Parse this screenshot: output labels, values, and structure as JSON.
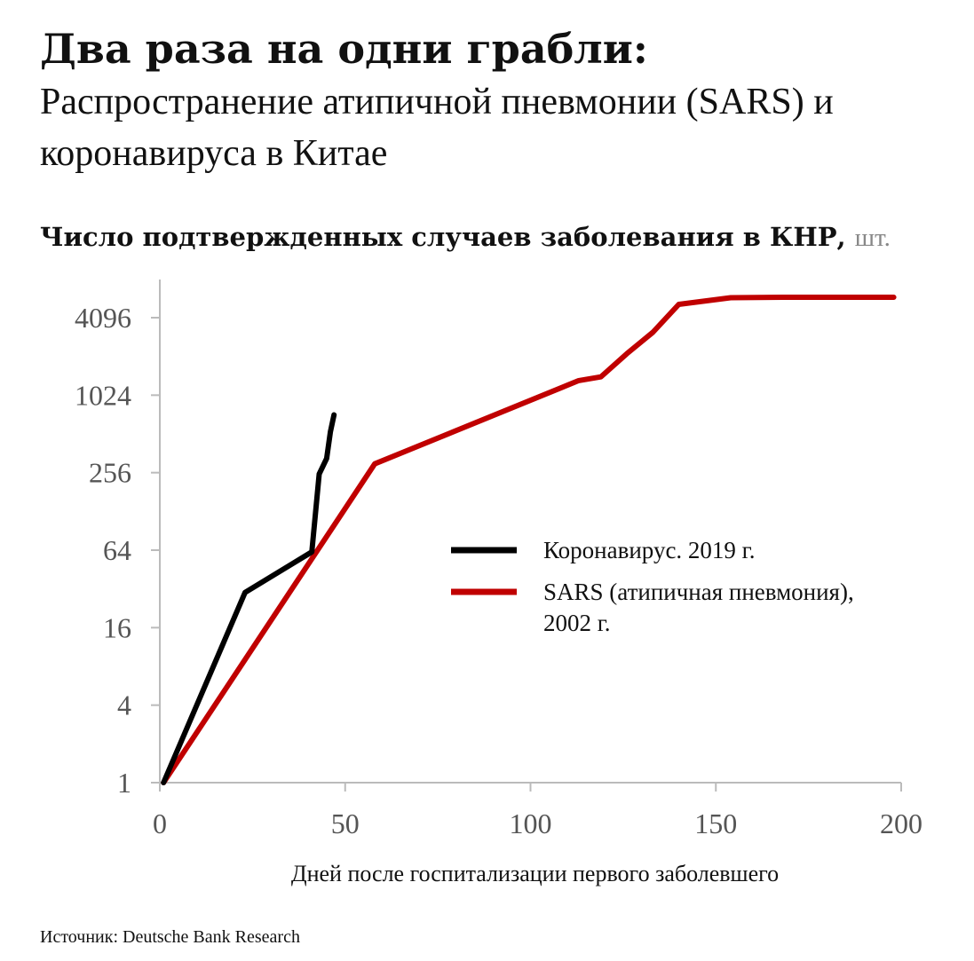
{
  "header": {
    "title": "Два раза на одни грабли:",
    "subtitle": "Распространение атипичной пневмонии (SARS) и коронавируса в Китае"
  },
  "chart_heading": {
    "text": "Число подтвержденных случаев заболевания в КНР,",
    "unit": "шт."
  },
  "source": "Источник: Deutsche Bank Research",
  "chart_data": {
    "type": "line",
    "title": "Число подтвержденных случаев заболевания в КНР, шт.",
    "xlabel": "Дней после госпитализации первого заболевшего",
    "ylabel": "",
    "xlim": [
      0,
      200
    ],
    "ylim": [
      1,
      8192
    ],
    "y_scale": "log2",
    "x_ticks": [
      0,
      50,
      100,
      150,
      200
    ],
    "x_tick_labels": [
      "0",
      "50",
      "100",
      "150",
      "200"
    ],
    "y_ticks": [
      1,
      4,
      16,
      64,
      256,
      1024,
      4096
    ],
    "y_tick_labels": [
      "1",
      "4",
      "16",
      "64",
      "256",
      "1024",
      "4096"
    ],
    "grid": false,
    "legend_position": "right",
    "series": [
      {
        "name": "Коронавирус. 2019 г.",
        "color": "#000000",
        "x": [
          1,
          23,
          41,
          43,
          45,
          46,
          47
        ],
        "y": [
          1,
          30,
          62,
          250,
          330,
          530,
          720
        ]
      },
      {
        "name": "SARS (атипичная пневмония), 2002 г.",
        "legend_lines": [
          "SARS (атипичная пневмония),",
          "2002 г."
        ],
        "color": "#c00000",
        "x": [
          1,
          58,
          113,
          119,
          126,
          133,
          140,
          154,
          168,
          198
        ],
        "y": [
          1,
          300,
          1330,
          1420,
          2150,
          3150,
          5200,
          5850,
          5900,
          5900
        ]
      }
    ]
  }
}
